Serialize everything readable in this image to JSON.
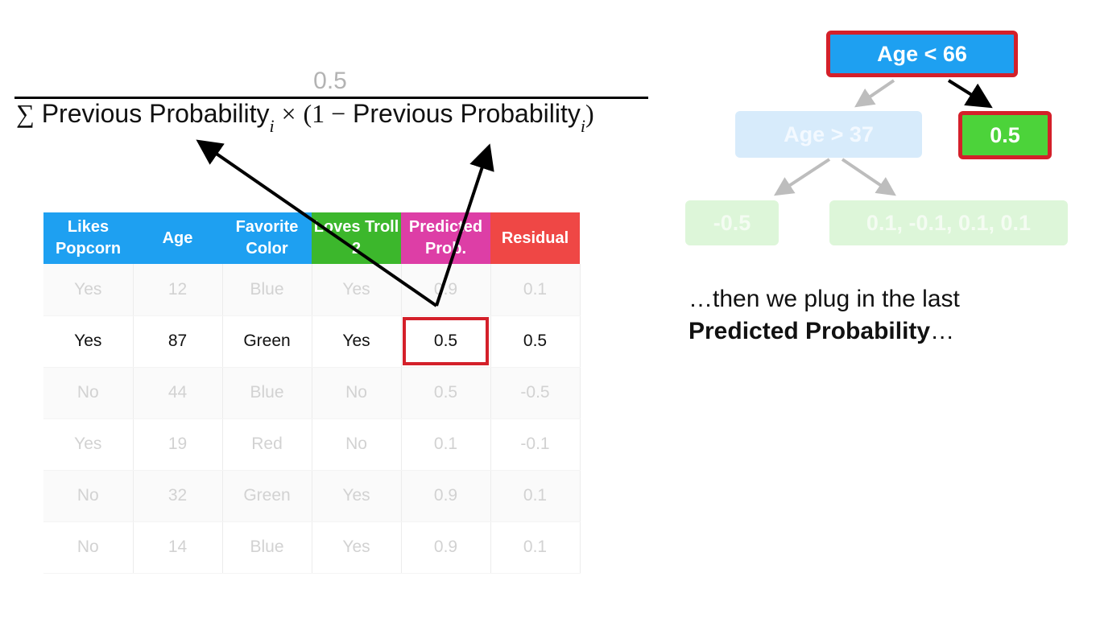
{
  "formula": {
    "numerator": "0.5",
    "sum_symbol": "∑",
    "term_1": "Previous Probability",
    "subscript": "i",
    "times": "×",
    "open_paren": "(1 −",
    "term_2": "Previous Probability",
    "close_paren": ")"
  },
  "table": {
    "headers": [
      {
        "label": "Likes Popcorn",
        "color": "#1ea0f1"
      },
      {
        "label": "Age",
        "color": "#1ea0f1"
      },
      {
        "label": "Favorite Color",
        "color": "#1ea0f1"
      },
      {
        "label": "Loves Troll 2",
        "color": "#3cb72c"
      },
      {
        "label": "Predicted Prob.",
        "color": "#dd3ea6"
      },
      {
        "label": "Residual",
        "color": "#ef4745"
      }
    ],
    "rows": [
      [
        "Yes",
        "12",
        "Blue",
        "Yes",
        "0.9",
        "0.1"
      ],
      [
        "Yes",
        "87",
        "Green",
        "Yes",
        "0.5",
        "0.5"
      ],
      [
        "No",
        "44",
        "Blue",
        "No",
        "0.5",
        "-0.5"
      ],
      [
        "Yes",
        "19",
        "Red",
        "No",
        "0.1",
        "-0.1"
      ],
      [
        "No",
        "32",
        "Green",
        "Yes",
        "0.9",
        "0.1"
      ],
      [
        "No",
        "14",
        "Blue",
        "Yes",
        "0.9",
        "0.1"
      ]
    ]
  },
  "tree": {
    "root": "Age < 66",
    "left_split": "Age > 37",
    "right_leaf": "0.5",
    "left_left_leaf": "-0.5",
    "left_right_leaf": "0.1, -0.1, 0.1, 0.1"
  },
  "caption": {
    "line1": "…then we plug in the last",
    "bold": "Predicted Probability",
    "ellipsis": "…"
  }
}
